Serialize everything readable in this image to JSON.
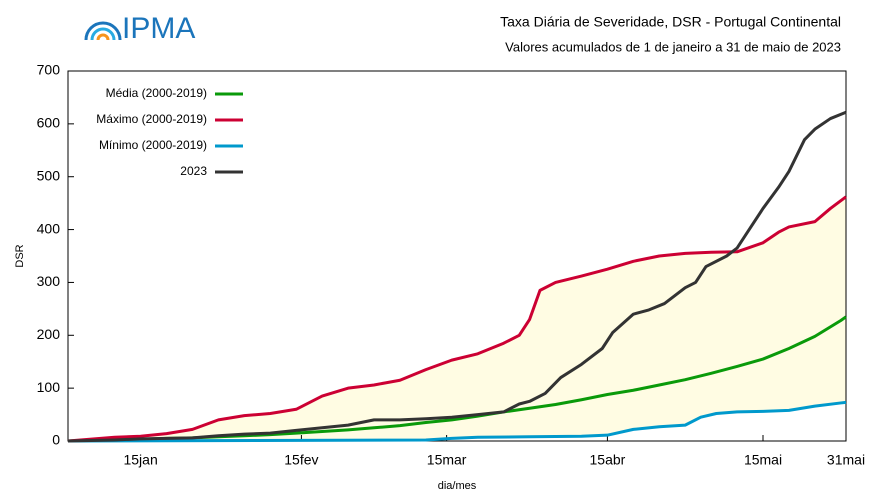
{
  "logo": "IPMA",
  "chart_data": {
    "type": "line",
    "title": "Taxa Diária de Severidade, DSR - Portugal Continental",
    "subtitle": "Valores acumulados de 1 de janeiro a 31 de maio de 2023",
    "y_label": "DSR",
    "x_label": "dia/mes",
    "xlim": [
      1,
      151
    ],
    "ylim": [
      0,
      700
    ],
    "xticks": [
      {
        "value": 15,
        "label": "15jan"
      },
      {
        "value": 46,
        "label": "15fev"
      },
      {
        "value": 74,
        "label": "15mar"
      },
      {
        "value": 105,
        "label": "15abr"
      },
      {
        "value": 135,
        "label": "15mai"
      },
      {
        "value": 151,
        "label": "31mai"
      }
    ],
    "yticks": [
      0,
      100,
      200,
      300,
      400,
      500,
      600,
      700
    ],
    "grid": false,
    "legend": "upper left",
    "band_color": "#fffce3",
    "series": [
      {
        "name": "Média (2000-2019)",
        "color": "#0a9a0a",
        "x": [
          1,
          5,
          10,
          15,
          20,
          25,
          30,
          35,
          40,
          45,
          50,
          55,
          60,
          65,
          70,
          75,
          80,
          85,
          90,
          95,
          100,
          105,
          110,
          115,
          120,
          125,
          130,
          135,
          140,
          145,
          150,
          151
        ],
        "values": [
          0,
          1,
          2,
          3,
          5,
          6,
          8,
          10,
          12,
          15,
          18,
          21,
          25,
          29,
          35,
          40,
          47,
          55,
          62,
          69,
          78,
          88,
          96,
          106,
          116,
          128,
          141,
          155,
          175,
          198,
          228,
          235
        ]
      },
      {
        "name": "Máximo (2000-2019)",
        "color": "#cc0033",
        "x": [
          1,
          10,
          15,
          20,
          25,
          30,
          35,
          40,
          45,
          50,
          55,
          60,
          65,
          70,
          75,
          80,
          85,
          88,
          90,
          92,
          95,
          100,
          105,
          110,
          115,
          120,
          125,
          130,
          135,
          138,
          140,
          145,
          148,
          151
        ],
        "values": [
          0,
          7,
          9,
          14,
          22,
          40,
          48,
          52,
          60,
          85,
          100,
          106,
          115,
          135,
          153,
          165,
          185,
          200,
          230,
          285,
          300,
          312,
          325,
          340,
          350,
          355,
          357,
          358,
          375,
          395,
          405,
          415,
          440,
          462
        ]
      },
      {
        "name": "Mínimo (2000-2019)",
        "color": "#0099cc",
        "x": [
          1,
          70,
          75,
          80,
          90,
          100,
          105,
          110,
          115,
          120,
          123,
          126,
          130,
          135,
          140,
          145,
          150,
          151
        ],
        "values": [
          0,
          2,
          5,
          7,
          8,
          9,
          11,
          22,
          27,
          30,
          45,
          52,
          55,
          56,
          58,
          66,
          72,
          73
        ]
      },
      {
        "name": "2023",
        "color": "#333333",
        "x": [
          1,
          10,
          15,
          20,
          25,
          30,
          35,
          40,
          45,
          50,
          55,
          60,
          65,
          70,
          75,
          80,
          85,
          88,
          90,
          93,
          96,
          100,
          104,
          106,
          110,
          113,
          116,
          120,
          122,
          124,
          128,
          130,
          132,
          135,
          138,
          140,
          143,
          145,
          148,
          151
        ],
        "values": [
          0,
          2,
          4,
          5,
          6,
          10,
          13,
          15,
          20,
          25,
          30,
          40,
          40,
          42,
          45,
          50,
          55,
          70,
          75,
          90,
          120,
          145,
          175,
          205,
          240,
          248,
          260,
          290,
          300,
          330,
          350,
          365,
          395,
          440,
          480,
          510,
          570,
          590,
          610,
          622
        ]
      }
    ]
  }
}
